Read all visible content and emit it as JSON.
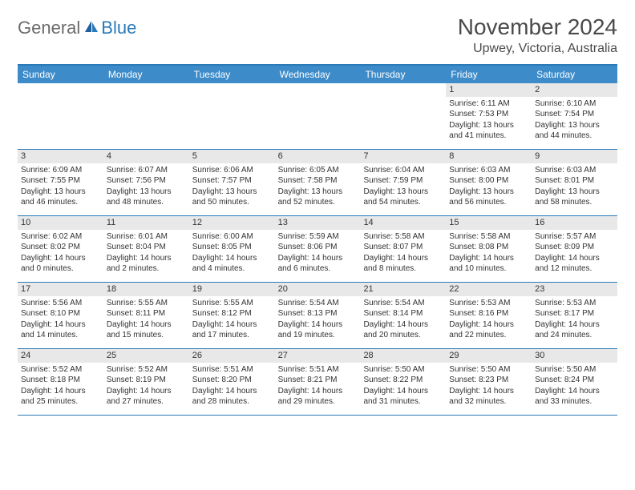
{
  "logo": {
    "general": "General",
    "blue": "Blue"
  },
  "title": "November 2024",
  "location": "Upwey, Victoria, Australia",
  "colors": {
    "header_bg": "#3d8bc9",
    "border": "#2a7ab8",
    "daynum_bg": "#e8e8e8",
    "text": "#333333",
    "logo_gray": "#6b6b6b",
    "logo_blue": "#2a7ab8"
  },
  "daynames": [
    "Sunday",
    "Monday",
    "Tuesday",
    "Wednesday",
    "Thursday",
    "Friday",
    "Saturday"
  ],
  "layout": {
    "first_weekday_index": 5,
    "days_in_month": 30
  },
  "days": {
    "1": {
      "sunrise": "6:11 AM",
      "sunset": "7:53 PM",
      "daylight": "13 hours and 41 minutes."
    },
    "2": {
      "sunrise": "6:10 AM",
      "sunset": "7:54 PM",
      "daylight": "13 hours and 44 minutes."
    },
    "3": {
      "sunrise": "6:09 AM",
      "sunset": "7:55 PM",
      "daylight": "13 hours and 46 minutes."
    },
    "4": {
      "sunrise": "6:07 AM",
      "sunset": "7:56 PM",
      "daylight": "13 hours and 48 minutes."
    },
    "5": {
      "sunrise": "6:06 AM",
      "sunset": "7:57 PM",
      "daylight": "13 hours and 50 minutes."
    },
    "6": {
      "sunrise": "6:05 AM",
      "sunset": "7:58 PM",
      "daylight": "13 hours and 52 minutes."
    },
    "7": {
      "sunrise": "6:04 AM",
      "sunset": "7:59 PM",
      "daylight": "13 hours and 54 minutes."
    },
    "8": {
      "sunrise": "6:03 AM",
      "sunset": "8:00 PM",
      "daylight": "13 hours and 56 minutes."
    },
    "9": {
      "sunrise": "6:03 AM",
      "sunset": "8:01 PM",
      "daylight": "13 hours and 58 minutes."
    },
    "10": {
      "sunrise": "6:02 AM",
      "sunset": "8:02 PM",
      "daylight": "14 hours and 0 minutes."
    },
    "11": {
      "sunrise": "6:01 AM",
      "sunset": "8:04 PM",
      "daylight": "14 hours and 2 minutes."
    },
    "12": {
      "sunrise": "6:00 AM",
      "sunset": "8:05 PM",
      "daylight": "14 hours and 4 minutes."
    },
    "13": {
      "sunrise": "5:59 AM",
      "sunset": "8:06 PM",
      "daylight": "14 hours and 6 minutes."
    },
    "14": {
      "sunrise": "5:58 AM",
      "sunset": "8:07 PM",
      "daylight": "14 hours and 8 minutes."
    },
    "15": {
      "sunrise": "5:58 AM",
      "sunset": "8:08 PM",
      "daylight": "14 hours and 10 minutes."
    },
    "16": {
      "sunrise": "5:57 AM",
      "sunset": "8:09 PM",
      "daylight": "14 hours and 12 minutes."
    },
    "17": {
      "sunrise": "5:56 AM",
      "sunset": "8:10 PM",
      "daylight": "14 hours and 14 minutes."
    },
    "18": {
      "sunrise": "5:55 AM",
      "sunset": "8:11 PM",
      "daylight": "14 hours and 15 minutes."
    },
    "19": {
      "sunrise": "5:55 AM",
      "sunset": "8:12 PM",
      "daylight": "14 hours and 17 minutes."
    },
    "20": {
      "sunrise": "5:54 AM",
      "sunset": "8:13 PM",
      "daylight": "14 hours and 19 minutes."
    },
    "21": {
      "sunrise": "5:54 AM",
      "sunset": "8:14 PM",
      "daylight": "14 hours and 20 minutes."
    },
    "22": {
      "sunrise": "5:53 AM",
      "sunset": "8:16 PM",
      "daylight": "14 hours and 22 minutes."
    },
    "23": {
      "sunrise": "5:53 AM",
      "sunset": "8:17 PM",
      "daylight": "14 hours and 24 minutes."
    },
    "24": {
      "sunrise": "5:52 AM",
      "sunset": "8:18 PM",
      "daylight": "14 hours and 25 minutes."
    },
    "25": {
      "sunrise": "5:52 AM",
      "sunset": "8:19 PM",
      "daylight": "14 hours and 27 minutes."
    },
    "26": {
      "sunrise": "5:51 AM",
      "sunset": "8:20 PM",
      "daylight": "14 hours and 28 minutes."
    },
    "27": {
      "sunrise": "5:51 AM",
      "sunset": "8:21 PM",
      "daylight": "14 hours and 29 minutes."
    },
    "28": {
      "sunrise": "5:50 AM",
      "sunset": "8:22 PM",
      "daylight": "14 hours and 31 minutes."
    },
    "29": {
      "sunrise": "5:50 AM",
      "sunset": "8:23 PM",
      "daylight": "14 hours and 32 minutes."
    },
    "30": {
      "sunrise": "5:50 AM",
      "sunset": "8:24 PM",
      "daylight": "14 hours and 33 minutes."
    }
  },
  "labels": {
    "sunrise": "Sunrise: ",
    "sunset": "Sunset: ",
    "daylight": "Daylight: "
  }
}
